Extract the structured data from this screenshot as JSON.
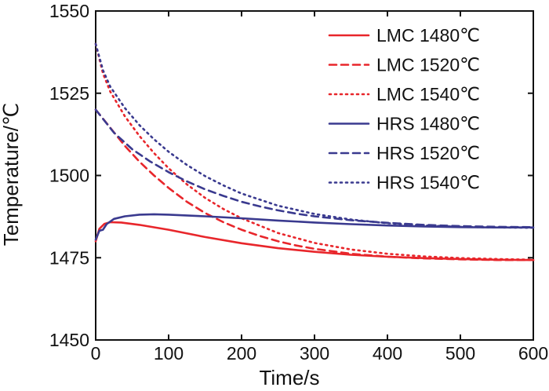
{
  "chart_data": {
    "type": "line",
    "title": "",
    "xlabel": "Time/s",
    "ylabel": "Temperature/℃",
    "xlim": [
      0,
      600
    ],
    "ylim": [
      1450,
      1550
    ],
    "xticks": [
      "0",
      "100",
      "200",
      "300",
      "400",
      "500",
      "600"
    ],
    "yticks": [
      "1450",
      "1475",
      "1500",
      "1525",
      "1550"
    ],
    "grid": false,
    "legend_position": "top-right",
    "series": [
      {
        "name": "LMC 1480℃",
        "color": "#e8262b",
        "dash": "solid",
        "x": [
          0,
          5,
          12,
          20,
          35,
          60,
          100,
          150,
          200,
          250,
          300,
          350,
          400,
          450,
          500,
          550,
          600
        ],
        "y": [
          1480,
          1483.8,
          1485.3,
          1485.8,
          1485.7,
          1485.0,
          1483.5,
          1481.3,
          1479.4,
          1477.9,
          1476.8,
          1475.9,
          1475.3,
          1474.9,
          1474.6,
          1474.4,
          1474.3
        ]
      },
      {
        "name": "LMC 1520℃",
        "color": "#e8262b",
        "dash": "dashed",
        "x": [
          0,
          20,
          40,
          60,
          80,
          100,
          125,
          150,
          175,
          200,
          225,
          250,
          275,
          300,
          350,
          400,
          450,
          500,
          550,
          600
        ],
        "y": [
          1520,
          1514.5,
          1509.0,
          1504.2,
          1500.0,
          1496.2,
          1492.0,
          1488.6,
          1485.8,
          1483.5,
          1481.6,
          1480.0,
          1478.7,
          1477.7,
          1476.2,
          1475.3,
          1474.8,
          1474.5,
          1474.3,
          1474.3
        ]
      },
      {
        "name": "LMC 1540℃",
        "color": "#e8262b",
        "dash": "dotted",
        "x": [
          0,
          10,
          20,
          40,
          60,
          80,
          100,
          125,
          150,
          175,
          200,
          250,
          300,
          350,
          400,
          450,
          500,
          550,
          600
        ],
        "y": [
          1540,
          1531.0,
          1525.5,
          1518.0,
          1512.0,
          1506.8,
          1502.2,
          1497.3,
          1493.2,
          1489.8,
          1487.0,
          1482.5,
          1479.5,
          1477.5,
          1476.2,
          1475.4,
          1474.9,
          1474.6,
          1474.4
        ]
      },
      {
        "name": "HRS 1480℃",
        "color": "#3a3a8f",
        "dash": "solid",
        "x": [
          0,
          5,
          10,
          15,
          25,
          40,
          60,
          80,
          100,
          150,
          200,
          250,
          300,
          350,
          400,
          450,
          500,
          550,
          600
        ],
        "y": [
          1480.5,
          1483.2,
          1483.5,
          1485.2,
          1486.8,
          1487.6,
          1488.1,
          1488.2,
          1488.1,
          1487.6,
          1487.0,
          1486.3,
          1485.7,
          1485.2,
          1484.8,
          1484.5,
          1484.3,
          1484.2,
          1484.2
        ]
      },
      {
        "name": "HRS 1520℃",
        "color": "#3a3a8f",
        "dash": "dashed",
        "x": [
          0,
          25,
          50,
          75,
          100,
          125,
          150,
          175,
          200,
          225,
          250,
          275,
          300,
          350,
          400,
          450,
          500,
          550,
          600
        ],
        "y": [
          1520,
          1513.0,
          1508.0,
          1504.2,
          1501.0,
          1498.2,
          1495.8,
          1493.8,
          1492.0,
          1490.6,
          1489.4,
          1488.4,
          1487.6,
          1486.4,
          1485.6,
          1485.0,
          1484.6,
          1484.4,
          1484.3
        ]
      },
      {
        "name": "HRS 1540℃",
        "color": "#3a3a8f",
        "dash": "dotted",
        "x": [
          0,
          10,
          20,
          40,
          60,
          80,
          100,
          125,
          150,
          175,
          200,
          250,
          300,
          350,
          400,
          450,
          500,
          550,
          600
        ],
        "y": [
          1540,
          1532.0,
          1527.0,
          1520.5,
          1515.3,
          1511.0,
          1507.2,
          1503.2,
          1499.8,
          1497.0,
          1494.5,
          1490.8,
          1488.3,
          1486.6,
          1485.5,
          1484.8,
          1484.4,
          1484.2,
          1484.1
        ]
      }
    ]
  }
}
